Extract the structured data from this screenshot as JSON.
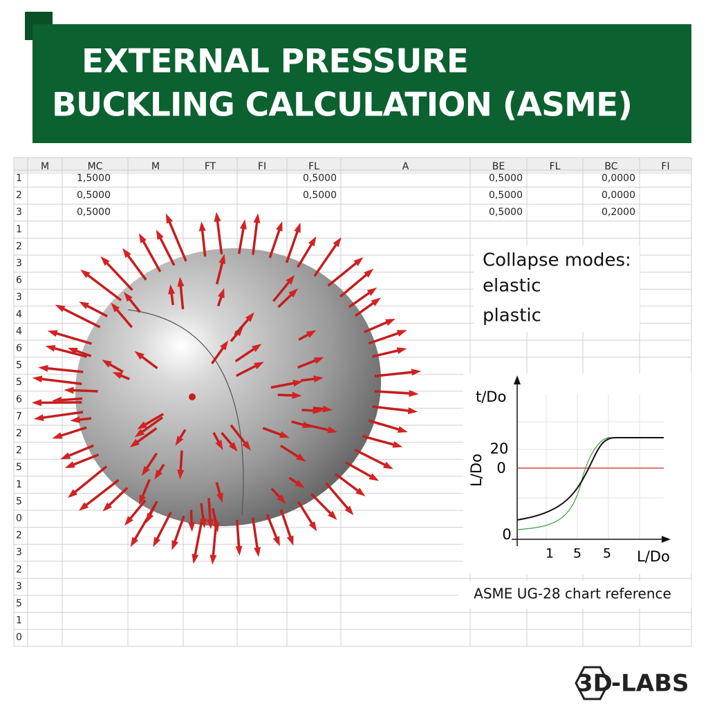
{
  "header": {
    "title_lines": [
      "EXTERNAL PRESSURE",
      "BUCKLING CALCULATION (ASME)"
    ]
  },
  "table": {
    "columns": [
      "M",
      "MC",
      "M",
      "FT",
      "FI",
      "FL",
      "A",
      "BE",
      "FL",
      "BC",
      "FI"
    ],
    "row_labels": [
      "1",
      "2",
      "3",
      "1",
      "2",
      "3",
      "6",
      "3",
      "4",
      "4",
      "6",
      "5",
      "5",
      "6",
      "7",
      "2",
      "2",
      "5",
      "1",
      "5",
      "0",
      "2",
      "3",
      "2",
      "3",
      "5",
      "1",
      "0"
    ],
    "cells": [
      [
        null,
        "1,5000",
        null,
        null,
        null,
        "0,5000",
        null,
        "0,5000",
        null,
        "0,0000",
        null
      ],
      [
        null,
        "0,5000",
        null,
        null,
        null,
        "0,5000",
        null,
        "0,5000",
        null,
        "0,0000",
        null
      ],
      [
        null,
        "0,5000",
        null,
        null,
        null,
        null,
        null,
        "0,5000",
        null,
        "0,2000",
        null
      ]
    ]
  },
  "note": {
    "lines": [
      "Collapse modes:",
      "elastic",
      "plastic"
    ]
  },
  "inset_chart": {
    "y_label_top": "t/Do",
    "y_label_side": "L/Do",
    "y_tick_labels": [
      "20",
      "0",
      "0"
    ],
    "x_tick_labels": [
      "1",
      "5",
      "5"
    ],
    "x_label": "L/Do",
    "caption": "ASME UG-28 chart reference"
  },
  "logo": {
    "mark": "3D",
    "text": "-LABS"
  }
}
